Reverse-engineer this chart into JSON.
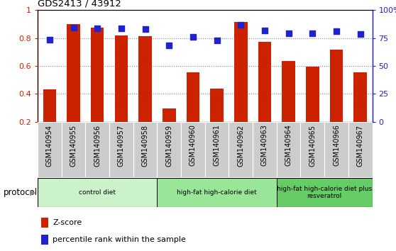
{
  "title": "GDS2413 / 43912",
  "samples": [
    "GSM140954",
    "GSM140955",
    "GSM140956",
    "GSM140957",
    "GSM140958",
    "GSM140959",
    "GSM140960",
    "GSM140961",
    "GSM140962",
    "GSM140963",
    "GSM140964",
    "GSM140965",
    "GSM140966",
    "GSM140967"
  ],
  "z_scores": [
    0.43,
    0.9,
    0.875,
    0.82,
    0.815,
    0.295,
    0.555,
    0.435,
    0.915,
    0.77,
    0.635,
    0.595,
    0.715,
    0.555
  ],
  "percentile_ranks": [
    73.5,
    84.5,
    83.5,
    83.5,
    83.0,
    68.5,
    76.0,
    73.0,
    86.5,
    81.5,
    79.0,
    79.0,
    81.0,
    78.5
  ],
  "bar_color": "#cc2200",
  "dot_color": "#2222cc",
  "ylim_left": [
    0.2,
    1.0
  ],
  "ylim_right": [
    0,
    100
  ],
  "yticks_left": [
    0.2,
    0.4,
    0.6,
    0.8,
    1.0
  ],
  "ytick_labels_left": [
    "0.2",
    "0.4",
    "0.6",
    "0.8",
    "1"
  ],
  "yticks_right": [
    0,
    25,
    50,
    75,
    100
  ],
  "ytick_labels_right": [
    "0",
    "25",
    "50",
    "75",
    "100%"
  ],
  "groups": [
    {
      "label": "control diet",
      "start": 0,
      "end": 4,
      "color": "#ccf2cc"
    },
    {
      "label": "high-fat high-calorie diet",
      "start": 5,
      "end": 9,
      "color": "#99e699"
    },
    {
      "label": "high-fat high-calorie diet plus\nresveratrol",
      "start": 10,
      "end": 13,
      "color": "#66cc66"
    }
  ],
  "protocol_label": "protocol",
  "legend_zscore": "Z-score",
  "legend_percentile": "percentile rank within the sample",
  "grid_color": "#888888",
  "bar_width": 0.55,
  "dot_size": 35,
  "background_color": "#ffffff",
  "tick_area_color": "#cccccc"
}
